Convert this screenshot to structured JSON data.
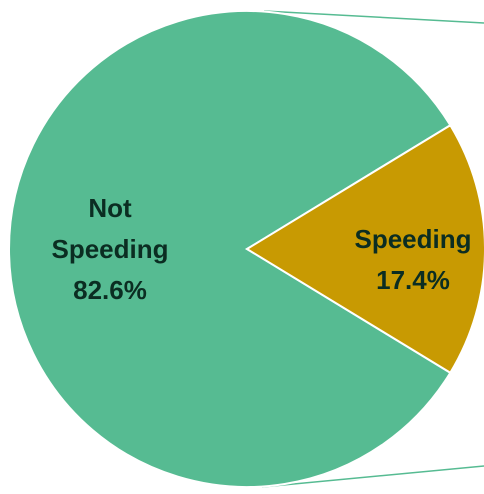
{
  "chart_data": {
    "type": "pie",
    "slices": [
      {
        "label": "Not Speeding",
        "label_lines": [
          "Not",
          "Speeding"
        ],
        "value": 82.6,
        "value_label": "82.6%",
        "color": "#56BB92",
        "label_color": "#0B2D22"
      },
      {
        "label": "Speeding",
        "label_lines": [
          "Speeding"
        ],
        "value": 17.4,
        "value_label": "17.4%",
        "color": "#C89A02",
        "label_color": "#0B2D22"
      }
    ],
    "connector_color": "#56BB92"
  }
}
